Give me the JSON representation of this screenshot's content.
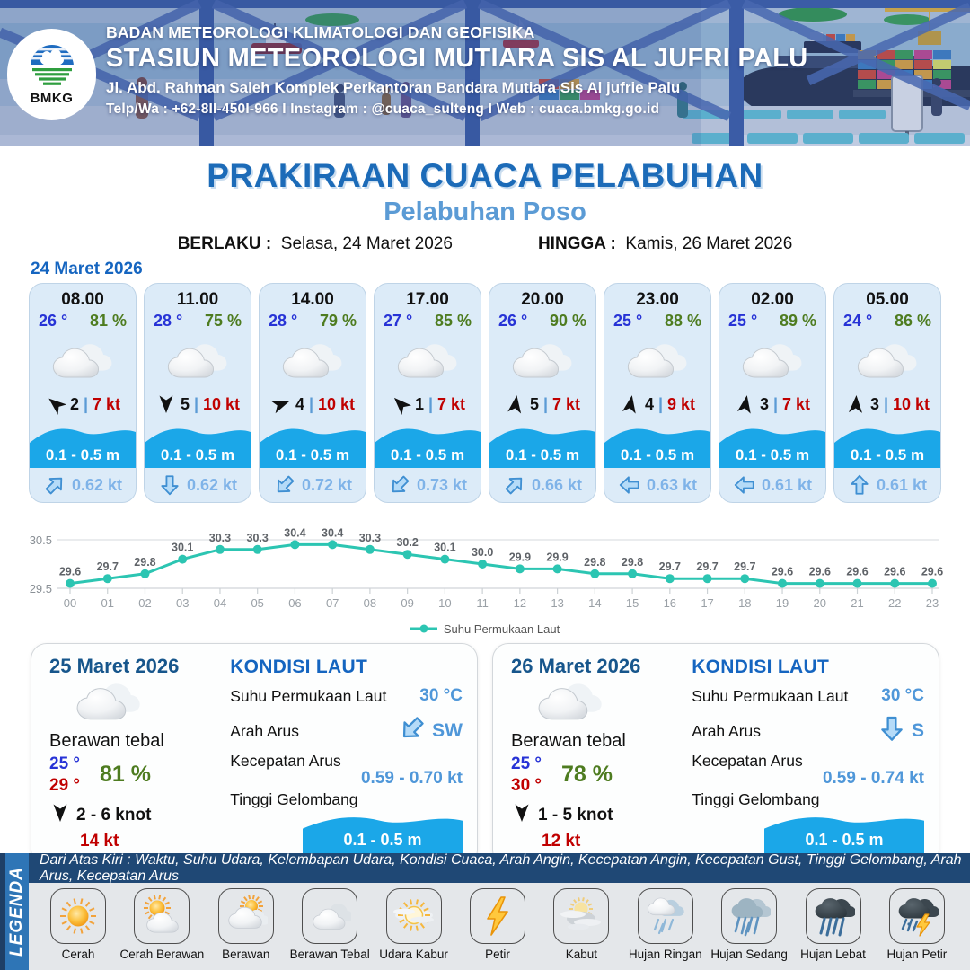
{
  "header": {
    "agency": "BADAN METEOROLOGI KLIMATOLOGI DAN GEOFISIKA",
    "station": "STASIUN METEOROLOGI MUTIARA SIS AL JUFRI PALU",
    "address": "Jl. Abd. Rahman Saleh Komplek Perkantoran Bandara Mutiara Sis Al jufrie Palu",
    "contact": "Telp/Wa : +62-8II-450I-966  I  Instagram : @cuaca_sulteng  I  Web : cuaca.bmkg.go.id",
    "logo_text": "BMKG"
  },
  "title": {
    "main": "PRAKIRAAN CUACA PELABUHAN",
    "subtitle": "Pelabuhan Poso",
    "berlaku_label": "BERLAKU :",
    "berlaku_value": "Selasa, 24 Maret 2026",
    "hingga_label": "HINGGA :",
    "hingga_value": "Kamis, 26 Maret 2026"
  },
  "forecast_day": {
    "date": "24 Maret 2026",
    "cards": [
      {
        "time": "08.00",
        "temp": "26 °",
        "humidity": "81 %",
        "wind_dir_deg": -50,
        "wind_force": "2",
        "gust": "7 kt",
        "wave": "0.1 - 0.5 m",
        "current_dir_deg": 45,
        "current_speed": "0.62 kt"
      },
      {
        "time": "11.00",
        "temp": "28 °",
        "humidity": "75 %",
        "wind_dir_deg": 180,
        "wind_force": "5",
        "gust": "10 kt",
        "wave": "0.1 - 0.5 m",
        "current_dir_deg": 180,
        "current_speed": "0.62 kt"
      },
      {
        "time": "14.00",
        "temp": "28 °",
        "humidity": "79 %",
        "wind_dir_deg": 70,
        "wind_force": "4",
        "gust": "10 kt",
        "wave": "0.1 - 0.5 m",
        "current_dir_deg": 225,
        "current_speed": "0.72 kt"
      },
      {
        "time": "17.00",
        "temp": "27 °",
        "humidity": "85 %",
        "wind_dir_deg": -45,
        "wind_force": "1",
        "gust": "7 kt",
        "wave": "0.1 - 0.5 m",
        "current_dir_deg": 225,
        "current_speed": "0.73 kt"
      },
      {
        "time": "20.00",
        "temp": "26 °",
        "humidity": "90 %",
        "wind_dir_deg": 8,
        "wind_force": "5",
        "gust": "7 kt",
        "wave": "0.1 - 0.5 m",
        "current_dir_deg": 45,
        "current_speed": "0.66 kt"
      },
      {
        "time": "23.00",
        "temp": "25 °",
        "humidity": "88 %",
        "wind_dir_deg": 10,
        "wind_force": "4",
        "gust": "9 kt",
        "wave": "0.1 - 0.5 m",
        "current_dir_deg": 270,
        "current_speed": "0.63 kt"
      },
      {
        "time": "02.00",
        "temp": "25 °",
        "humidity": "89 %",
        "wind_dir_deg": 10,
        "wind_force": "3",
        "gust": "7 kt",
        "wave": "0.1 - 0.5 m",
        "current_dir_deg": 270,
        "current_speed": "0.61 kt"
      },
      {
        "time": "05.00",
        "temp": "24 °",
        "humidity": "86 %",
        "wind_dir_deg": 3,
        "wind_force": "3",
        "gust": "10 kt",
        "wave": "0.1 - 0.5 m",
        "current_dir_deg": 0,
        "current_speed": "0.61 kt"
      }
    ]
  },
  "chart_data": {
    "type": "line",
    "title": "",
    "series_name": "Suhu Permukaan Laut",
    "x": [
      "00",
      "01",
      "02",
      "03",
      "04",
      "05",
      "06",
      "07",
      "08",
      "09",
      "10",
      "11",
      "12",
      "13",
      "14",
      "15",
      "16",
      "17",
      "18",
      "19",
      "20",
      "21",
      "22",
      "23"
    ],
    "values": [
      29.6,
      29.7,
      29.8,
      30.1,
      30.3,
      30.3,
      30.4,
      30.4,
      30.3,
      30.2,
      30.1,
      30.0,
      29.9,
      29.9,
      29.8,
      29.8,
      29.7,
      29.7,
      29.7,
      29.6,
      29.6,
      29.6,
      29.6,
      29.6
    ],
    "ylim": [
      29.5,
      30.5
    ],
    "yticks": [
      "30.5",
      "29.5"
    ],
    "line_color": "#2cc5b2",
    "grid": true,
    "legend_position": "bottom"
  },
  "day_cards": [
    {
      "date": "25 Maret 2026",
      "condition": "Berawan tebal",
      "temp_min": "25 °",
      "temp_max": "29 °",
      "humidity": "81 %",
      "wind_range": "2  - 6 knot",
      "gust": "14 kt",
      "sea": {
        "heading": "KONDISI LAUT",
        "sst_label": "Suhu Permukaan Laut",
        "sst": "30 °C",
        "dir_label": "Arah Arus",
        "dir": "SW",
        "dir_deg": 225,
        "speed_label": "Kecepatan Arus",
        "speed": "0.59  - 0.70 kt",
        "wave_label": "Tinggi Gelombang",
        "wave": "0.1 - 0.5 m"
      }
    },
    {
      "date": "26 Maret 2026",
      "condition": "Berawan tebal",
      "temp_min": "25 °",
      "temp_max": "30 °",
      "humidity": "78 %",
      "wind_range": "1  - 5 knot",
      "gust": "12 kt",
      "sea": {
        "heading": "KONDISI LAUT",
        "sst_label": "Suhu Permukaan Laut",
        "sst": "30 °C",
        "dir_label": "Arah Arus",
        "dir": "S",
        "dir_deg": 180,
        "speed_label": "Kecepatan Arus",
        "speed": "0.59 - 0.74 kt",
        "wave_label": "Tinggi Gelombang",
        "wave": "0.1 - 0.5 m"
      }
    }
  ],
  "legend": {
    "title": "LEGENDA",
    "description": "Dari Atas Kiri : Waktu, Suhu Udara, Kelembapan Udara, Kondisi Cuaca, Arah Angin, Kecepatan Angin, Kecepatan Gust, Tinggi Gelombang, Arah Arus, Kecepatan Arus",
    "items": [
      {
        "label": "Cerah",
        "icon": "sun"
      },
      {
        "label": "Cerah Berawan",
        "icon": "sun-cloud"
      },
      {
        "label": "Berawan",
        "icon": "cloud-sun"
      },
      {
        "label": "Berawan Tebal",
        "icon": "clouds"
      },
      {
        "label": "Udara Kabur",
        "icon": "haze-sun"
      },
      {
        "label": "Petir",
        "icon": "lightning"
      },
      {
        "label": "Kabut",
        "icon": "fog"
      },
      {
        "label": "Hujan Ringan",
        "icon": "rain-light"
      },
      {
        "label": "Hujan Sedang",
        "icon": "rain-medium"
      },
      {
        "label": "Hujan Lebat",
        "icon": "rain-heavy"
      },
      {
        "label": "Hujan Petir",
        "icon": "storm"
      }
    ]
  }
}
